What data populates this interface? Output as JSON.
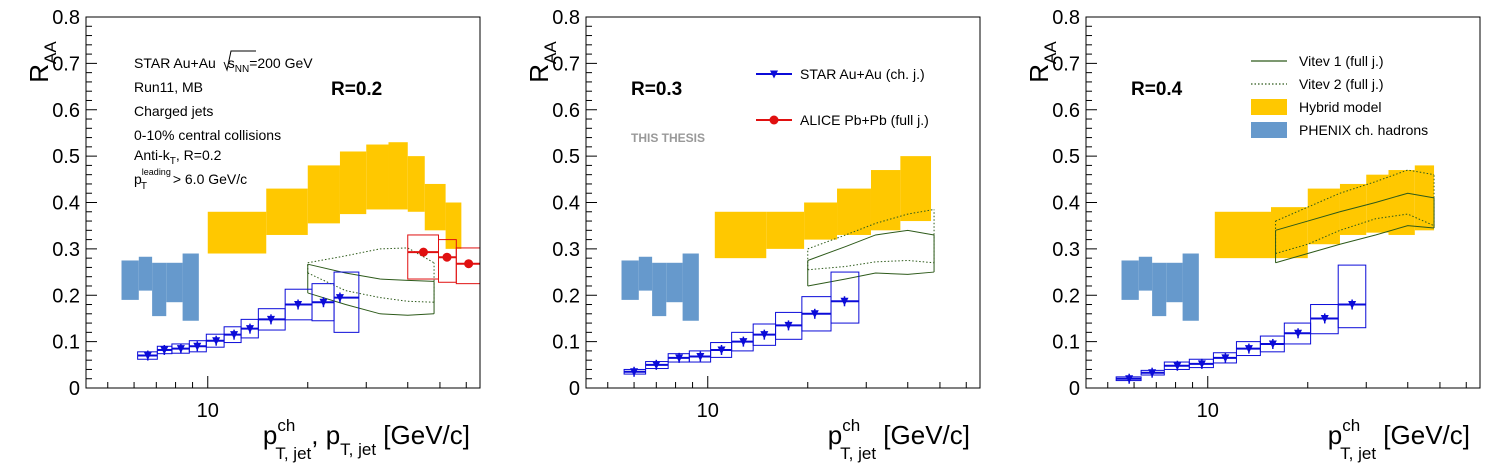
{
  "colors": {
    "star": "#0b0bd8",
    "alice": "#e01010",
    "hybrid": "#ffc800",
    "phenix": "#6699cc",
    "vitev": "#2d5a1a"
  },
  "chart_data": [
    {
      "type": "scatter",
      "title": "",
      "xlabel": "p_T,jet^ch, p_T,jet [GeV/c]",
      "xlabel_parts": {
        "main1": "p",
        "sup1": "ch",
        "sub1": "T, jet",
        "sep": ", ",
        "main2": "p",
        "sub2": "T, jet",
        "unit": " [GeV/c]"
      },
      "ylabel": "R_AA",
      "ylabel_parts": {
        "main": "R",
        "sub": "AA"
      },
      "x_scale": "log",
      "xlim": [
        4.3,
        66
      ],
      "ylim": [
        0,
        0.8
      ],
      "yticks": [
        "0",
        "0.1",
        "0.2",
        "0.3",
        "0.4",
        "0.5",
        "0.6",
        "0.7",
        "0.8"
      ],
      "xtick_labels": [
        {
          "x": 10,
          "label": "10"
        }
      ],
      "radius_label": "R=0.2",
      "info_text": {
        "line1_a": "STAR Au+Au ",
        "line1_sqrt": "s",
        "line1_sub": "NN",
        "line1_b": "=200 GeV",
        "line2": "Run11, MB",
        "line3": "Charged jets",
        "line4": "0-10% central collisions",
        "line5_a": "Anti-k",
        "line5_sub": "T",
        "line5_b": ", R=0.2",
        "line6_main": "p",
        "line6_sup": "leading",
        "line6_sub": "T",
        "line6_b": " > 6.0 GeV/c"
      },
      "series": [
        {
          "name": "STAR Au+Au (ch. j.)",
          "x": [
            6.6,
            7.4,
            8.3,
            9.3,
            10.6,
            12.0,
            13.4,
            15.5,
            18.7,
            22.3,
            25.0
          ],
          "y": [
            0.07,
            0.082,
            0.085,
            0.09,
            0.102,
            0.115,
            0.128,
            0.148,
            0.18,
            0.185,
            0.195
          ],
          "sys_x": [
            [
              6.15,
              7.05
            ],
            [
              7.05,
              7.8
            ],
            [
              7.8,
              8.8
            ],
            [
              8.8,
              9.9
            ],
            [
              9.9,
              11.2
            ],
            [
              11.2,
              12.6
            ],
            [
              12.6,
              14.2
            ],
            [
              14.2,
              17.1
            ],
            [
              17.1,
              20.6
            ],
            [
              20.6,
              24.0
            ],
            [
              24.0,
              28.5
            ]
          ],
          "sys_y": [
            [
              0.062,
              0.078
            ],
            [
              0.074,
              0.09
            ],
            [
              0.075,
              0.095
            ],
            [
              0.078,
              0.102
            ],
            [
              0.088,
              0.116
            ],
            [
              0.098,
              0.132
            ],
            [
              0.108,
              0.148
            ],
            [
              0.125,
              0.171
            ],
            [
              0.147,
              0.213
            ],
            [
              0.145,
              0.225
            ],
            [
              0.12,
              0.25
            ]
          ]
        },
        {
          "name": "ALICE Pb+Pb (full j.)",
          "x": [
            44.6,
            52.5,
            61.0
          ],
          "y": [
            0.293,
            0.282,
            0.268
          ],
          "sys_x": [
            [
              40.0,
              49.5
            ],
            [
              49.5,
              56.0
            ],
            [
              56.0,
              66.0
            ]
          ],
          "sys_y": [
            [
              0.235,
              0.33
            ],
            [
              0.228,
              0.32
            ],
            [
              0.225,
              0.302
            ]
          ]
        }
      ],
      "hybrid_model": [
        {
          "x": [
            10,
            15
          ],
          "y": [
            0.29,
            0.38
          ]
        },
        {
          "x": [
            15,
            20
          ],
          "y": [
            0.33,
            0.43
          ]
        },
        {
          "x": [
            20,
            25
          ],
          "y": [
            0.355,
            0.48
          ]
        },
        {
          "x": [
            25,
            30
          ],
          "y": [
            0.375,
            0.51
          ]
        },
        {
          "x": [
            30,
            35
          ],
          "y": [
            0.385,
            0.525
          ]
        },
        {
          "x": [
            35,
            40
          ],
          "y": [
            0.385,
            0.53
          ]
        },
        {
          "x": [
            40,
            45
          ],
          "y": [
            0.38,
            0.5
          ]
        },
        {
          "x": [
            45,
            52
          ],
          "y": [
            0.34,
            0.44
          ]
        },
        {
          "x": [
            52,
            58
          ],
          "y": [
            0.3,
            0.4
          ]
        }
      ],
      "phenix": [
        {
          "x": [
            5.5,
            6.2
          ],
          "y": [
            0.19,
            0.275
          ]
        },
        {
          "x": [
            6.2,
            6.8
          ],
          "y": [
            0.21,
            0.283
          ]
        },
        {
          "x": [
            6.8,
            7.5
          ],
          "y": [
            0.155,
            0.27
          ]
        },
        {
          "x": [
            7.5,
            8.4
          ],
          "y": [
            0.185,
            0.27
          ]
        },
        {
          "x": [
            8.4,
            9.4
          ],
          "y": [
            0.145,
            0.29
          ]
        }
      ],
      "vitev1": {
        "x": [
          20,
          26,
          33,
          40,
          48
        ],
        "lo": [
          0.205,
          0.18,
          0.16,
          0.157,
          0.16
        ],
        "hi": [
          0.267,
          0.248,
          0.235,
          0.232,
          0.23
        ]
      },
      "vitev2": {
        "x": [
          20,
          26,
          33,
          40,
          48
        ],
        "lo": [
          0.248,
          0.21,
          0.195,
          0.187,
          0.185
        ],
        "hi": [
          0.27,
          0.285,
          0.3,
          0.302,
          0.27
        ]
      }
    },
    {
      "type": "scatter",
      "title": "",
      "xlabel": "p_T,jet^ch [GeV/c]",
      "xlabel_parts": {
        "main1": "p",
        "sup1": "ch",
        "sub1": "T, jet",
        "unit": " [GeV/c]"
      },
      "ylabel": "R_AA",
      "ylabel_parts": {
        "main": "R",
        "sub": "AA"
      },
      "x_scale": "log",
      "xlim": [
        4.3,
        66
      ],
      "ylim": [
        0,
        0.8
      ],
      "yticks": [
        "0",
        "0.1",
        "0.2",
        "0.3",
        "0.4",
        "0.5",
        "0.6",
        "0.7",
        "0.8"
      ],
      "xtick_labels": [
        {
          "x": 10,
          "label": "10"
        }
      ],
      "radius_label": "R=0.3",
      "watermark": "THIS THESIS",
      "legend": {
        "position": "top-right",
        "entries": [
          {
            "label": "STAR Au+Au (ch. j.)",
            "series": "star"
          },
          {
            "label": "ALICE Pb+Pb (full j.)",
            "series": "alice"
          }
        ]
      },
      "series": [
        {
          "name": "STAR Au+Au (ch. j.)",
          "x": [
            6.0,
            7.0,
            8.2,
            9.5,
            11.0,
            12.8,
            14.8,
            17.5,
            21.0,
            25.8
          ],
          "y": [
            0.035,
            0.05,
            0.065,
            0.068,
            0.082,
            0.1,
            0.115,
            0.135,
            0.16,
            0.187
          ],
          "sys_x": [
            [
              5.6,
              6.5
            ],
            [
              6.5,
              7.6
            ],
            [
              7.6,
              8.8
            ],
            [
              8.8,
              10.2
            ],
            [
              10.2,
              11.8
            ],
            [
              11.8,
              13.7
            ],
            [
              13.7,
              16.0
            ],
            [
              16.0,
              19.2
            ],
            [
              19.2,
              23.5
            ],
            [
              23.5,
              28.5
            ]
          ],
          "sys_y": [
            [
              0.03,
              0.04
            ],
            [
              0.042,
              0.057
            ],
            [
              0.056,
              0.074
            ],
            [
              0.056,
              0.08
            ],
            [
              0.066,
              0.098
            ],
            [
              0.08,
              0.12
            ],
            [
              0.092,
              0.138
            ],
            [
              0.105,
              0.163
            ],
            [
              0.123,
              0.197
            ],
            [
              0.14,
              0.25
            ]
          ]
        }
      ],
      "hybrid_model": [
        {
          "x": [
            10.5,
            15
          ],
          "y": [
            0.28,
            0.38
          ]
        },
        {
          "x": [
            15,
            19.5
          ],
          "y": [
            0.3,
            0.38
          ]
        },
        {
          "x": [
            19.5,
            24.5
          ],
          "y": [
            0.32,
            0.4
          ]
        },
        {
          "x": [
            24.5,
            31
          ],
          "y": [
            0.33,
            0.43
          ]
        },
        {
          "x": [
            31,
            38
          ],
          "y": [
            0.34,
            0.47
          ]
        },
        {
          "x": [
            38,
            47
          ],
          "y": [
            0.36,
            0.5
          ]
        }
      ],
      "phenix": [
        {
          "x": [
            5.5,
            6.2
          ],
          "y": [
            0.19,
            0.275
          ]
        },
        {
          "x": [
            6.2,
            6.8
          ],
          "y": [
            0.21,
            0.283
          ]
        },
        {
          "x": [
            6.8,
            7.5
          ],
          "y": [
            0.155,
            0.27
          ]
        },
        {
          "x": [
            7.5,
            8.4
          ],
          "y": [
            0.185,
            0.27
          ]
        },
        {
          "x": [
            8.4,
            9.4
          ],
          "y": [
            0.145,
            0.29
          ]
        }
      ],
      "vitev1": {
        "x": [
          20,
          26,
          32,
          40,
          48
        ],
        "lo": [
          0.22,
          0.235,
          0.248,
          0.245,
          0.25
        ],
        "hi": [
          0.275,
          0.305,
          0.33,
          0.34,
          0.33
        ]
      },
      "vitev2": {
        "x": [
          20,
          26,
          32,
          40,
          48
        ],
        "lo": [
          0.255,
          0.262,
          0.272,
          0.275,
          0.27
        ],
        "hi": [
          0.3,
          0.33,
          0.355,
          0.375,
          0.385
        ]
      }
    },
    {
      "type": "scatter",
      "title": "",
      "xlabel": "p_T,jet^ch [GeV/c]",
      "xlabel_parts": {
        "main1": "p",
        "sup1": "ch",
        "sub1": "T, jet",
        "unit": " [GeV/c]"
      },
      "ylabel": "R_AA",
      "ylabel_parts": {
        "main": "R",
        "sub": "AA"
      },
      "x_scale": "log",
      "xlim": [
        4.3,
        66
      ],
      "ylim": [
        0,
        0.8
      ],
      "yticks": [
        "0",
        "0.1",
        "0.2",
        "0.3",
        "0.4",
        "0.5",
        "0.6",
        "0.7",
        "0.8"
      ],
      "xtick_labels": [
        {
          "x": 10,
          "label": "10"
        }
      ],
      "radius_label": "R=0.4",
      "legend": {
        "position": "top-right",
        "entries": [
          {
            "label": "Vitev 1 (full j.)",
            "series": "vitev1"
          },
          {
            "label": "Vitev 2 (full j.)",
            "series": "vitev2"
          },
          {
            "label": "Hybrid model",
            "series": "hybrid"
          },
          {
            "label": "PHENIX ch. hadrons",
            "series": "phenix"
          }
        ]
      },
      "series": [
        {
          "name": "STAR Au+Au (ch. j.)",
          "x": [
            5.8,
            6.8,
            8.1,
            9.6,
            11.3,
            13.3,
            15.7,
            18.7,
            22.5,
            27.2
          ],
          "y": [
            0.02,
            0.033,
            0.048,
            0.052,
            0.065,
            0.085,
            0.095,
            0.118,
            0.15,
            0.18
          ],
          "sys_x": [
            [
              5.3,
              6.3
            ],
            [
              6.3,
              7.4
            ],
            [
              7.4,
              8.8
            ],
            [
              8.8,
              10.4
            ],
            [
              10.4,
              12.2
            ],
            [
              12.2,
              14.4
            ],
            [
              14.4,
              17.0
            ],
            [
              17.0,
              20.4
            ],
            [
              20.4,
              24.7
            ],
            [
              24.7,
              29.9
            ]
          ],
          "sys_y": [
            [
              0.016,
              0.024
            ],
            [
              0.028,
              0.038
            ],
            [
              0.04,
              0.056
            ],
            [
              0.044,
              0.062
            ],
            [
              0.054,
              0.076
            ],
            [
              0.07,
              0.1
            ],
            [
              0.078,
              0.112
            ],
            [
              0.095,
              0.14
            ],
            [
              0.117,
              0.18
            ],
            [
              0.13,
              0.265
            ]
          ]
        }
      ],
      "hybrid_model": [
        {
          "x": [
            10.5,
            15.5
          ],
          "y": [
            0.28,
            0.38
          ]
        },
        {
          "x": [
            15.5,
            20
          ],
          "y": [
            0.28,
            0.39
          ]
        },
        {
          "x": [
            20,
            25
          ],
          "y": [
            0.31,
            0.43
          ]
        },
        {
          "x": [
            25,
            30
          ],
          "y": [
            0.33,
            0.44
          ]
        },
        {
          "x": [
            30,
            35
          ],
          "y": [
            0.335,
            0.46
          ]
        },
        {
          "x": [
            35,
            42
          ],
          "y": [
            0.33,
            0.47
          ]
        },
        {
          "x": [
            42,
            48
          ],
          "y": [
            0.34,
            0.48
          ]
        }
      ],
      "phenix": [
        {
          "x": [
            5.5,
            6.2
          ],
          "y": [
            0.19,
            0.275
          ]
        },
        {
          "x": [
            6.2,
            6.8
          ],
          "y": [
            0.21,
            0.283
          ]
        },
        {
          "x": [
            6.8,
            7.5
          ],
          "y": [
            0.155,
            0.27
          ]
        },
        {
          "x": [
            7.5,
            8.4
          ],
          "y": [
            0.185,
            0.27
          ]
        },
        {
          "x": [
            8.4,
            9.4
          ],
          "y": [
            0.145,
            0.29
          ]
        }
      ],
      "vitev1": {
        "x": [
          16,
          20,
          25,
          32,
          40,
          48
        ],
        "lo": [
          0.27,
          0.29,
          0.31,
          0.33,
          0.35,
          0.345
        ],
        "hi": [
          0.34,
          0.36,
          0.38,
          0.4,
          0.42,
          0.41
        ]
      },
      "vitev2": {
        "x": [
          16,
          20,
          25,
          32,
          40,
          48
        ],
        "lo": [
          0.29,
          0.31,
          0.34,
          0.365,
          0.375,
          0.35
        ],
        "hi": [
          0.36,
          0.39,
          0.42,
          0.445,
          0.47,
          0.46
        ]
      }
    }
  ]
}
